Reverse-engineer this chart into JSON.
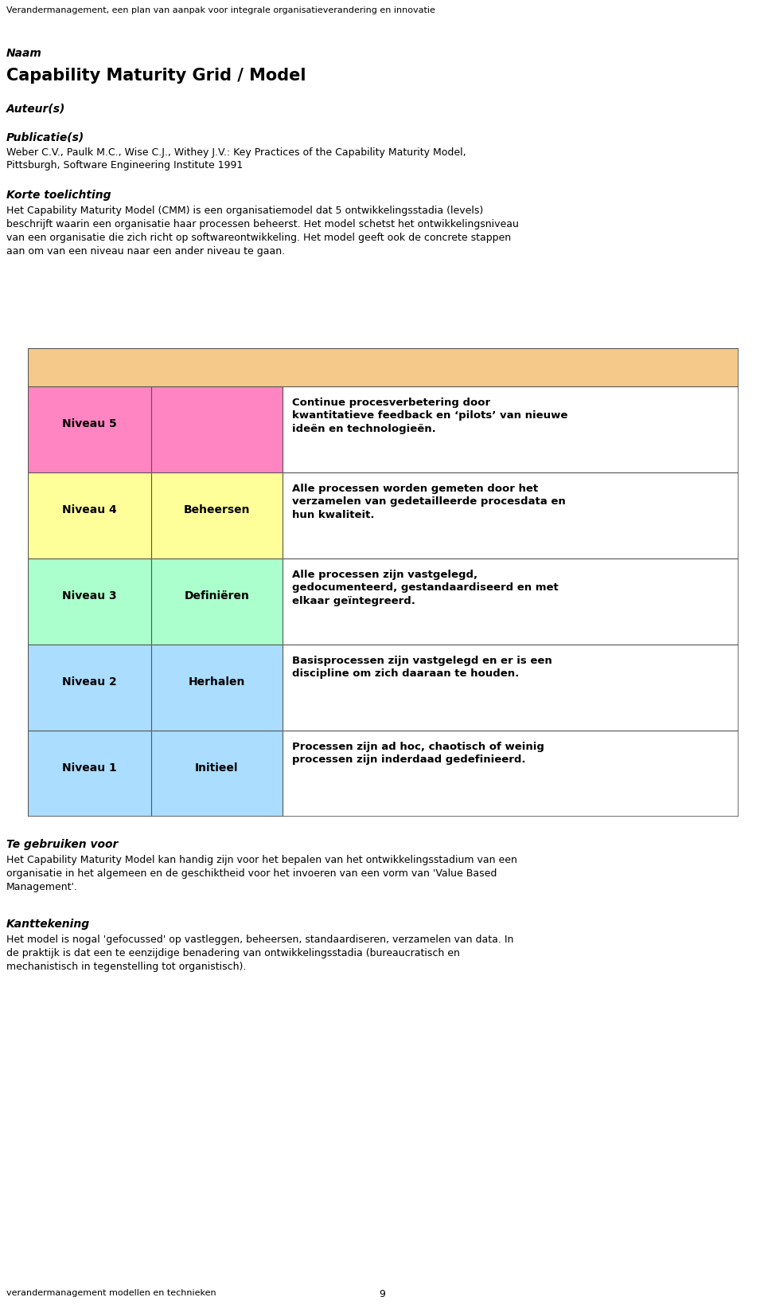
{
  "header_text": "Verandermanagement, een plan van aanpak voor integrale organisatieverandering en innovatie",
  "footer_text": "verandermanagement modellen en technieken",
  "footer_page": "9",
  "label_naam": "Naam",
  "title": "Capability Maturity Grid / Model",
  "label_auteur": "Auteur(s)",
  "label_publicatie": "Publicatie(s)",
  "publicatie_text": "Weber C.V., Paulk M.C., Wise C.J., Withey J.V.: Key Practices of the Capability Maturity Model,\nPittsburgh, Software Engineering Institute 1991",
  "label_korte": "Korte toelichting",
  "korte_text": "Het Capability Maturity Model (CMM) is een organisatiemodel dat 5 ontwikkelingsstadia (levels)\nbeschrijft waarin een organisatie haar processen beheerst. Het model schetst het ontwikkelingsniveau\nvan een organisatie die zich richt op softwareontwikkeling. Het model geeft ook de concrete stappen\naan om van een niveau naar een ander niveau te gaan.",
  "table_header_color": "#F5C98A",
  "levels": [
    {
      "niveau": "Niveau 5",
      "label": "",
      "description": "Continue procesverbetering door\nkwantitatieve feedback en ‘pilots’ van nieuwe\nideën en technologieën.",
      "row_color": "#FF85C2"
    },
    {
      "niveau": "Niveau 4",
      "label": "Beheersen",
      "description": "Alle processen worden gemeten door het\nverzamelen van gedetailleerde procesdata en\nhun kwaliteit.",
      "row_color": "#FFFF99"
    },
    {
      "niveau": "Niveau 3",
      "label": "Definiëren",
      "description": "Alle processen zijn vastgelegd,\ngedocumenteerd, gestandaardiseerd en met\nelkaar geïntegreerd.",
      "row_color": "#AAFFCC"
    },
    {
      "niveau": "Niveau 2",
      "label": "Herhalen",
      "description": "Basisprocessen zijn vastgelegd en er is een\ndiscipline om zich daaraan te houden.",
      "row_color": "#AADDFF"
    },
    {
      "niveau": "Niveau 1",
      "label": "Initieel",
      "description": "Processen zijn ad hoc, chaotisch of weinig\nprocessen zijn inderdaad gedefinieerd.",
      "row_color": "#AADDFF"
    }
  ],
  "label_gebruik": "Te gebruiken voor",
  "gebruik_text": "Het Capability Maturity Model kan handig zijn voor het bepalen van het ontwikkelingsstadium van een\norganisatie in het algemeen en de geschiktheid voor het invoeren van een vorm van 'Value Based\nManagement'.",
  "label_kanttekening": "Kanttekening",
  "kanttekening_text": "Het model is nogal 'gefocussed' op vastleggen, beheersen, standaardiseren, verzamelen van data. In\nde praktijk is dat een te eenzijdige benadering van ontwikkelingsstadia (bureaucratisch en\nmechanistisch in tegenstelling tot organistisch).",
  "bg_color": "#FFFFFF",
  "text_color": "#000000",
  "border_color": "#555555"
}
